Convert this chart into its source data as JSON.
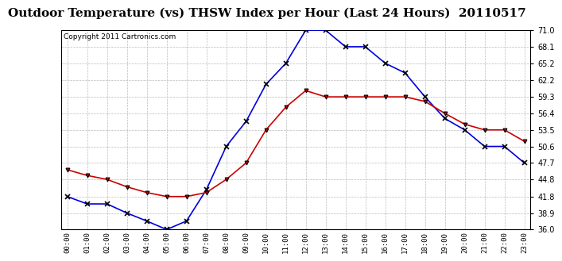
{
  "title": "Outdoor Temperature (vs) THSW Index per Hour (Last 24 Hours)  20110517",
  "copyright": "Copyright 2011 Cartronics.com",
  "hours": [
    0,
    1,
    2,
    3,
    4,
    5,
    6,
    7,
    8,
    9,
    10,
    11,
    12,
    13,
    14,
    15,
    16,
    17,
    18,
    19,
    20,
    21,
    22,
    23
  ],
  "thsw_blue": [
    41.8,
    40.5,
    40.5,
    38.9,
    37.5,
    36.0,
    37.5,
    43.0,
    50.6,
    55.0,
    61.5,
    65.2,
    71.0,
    71.0,
    68.1,
    68.1,
    65.2,
    63.5,
    59.3,
    55.5,
    53.5,
    50.6,
    50.6,
    47.7
  ],
  "temp_red": [
    46.5,
    45.5,
    44.8,
    43.5,
    42.5,
    41.8,
    41.8,
    42.5,
    44.8,
    47.7,
    53.5,
    57.5,
    60.4,
    59.3,
    59.3,
    59.3,
    59.3,
    59.3,
    58.5,
    56.4,
    54.5,
    53.5,
    53.5,
    51.5
  ],
  "ylim": [
    36.0,
    71.0
  ],
  "yticks": [
    36.0,
    38.9,
    41.8,
    44.8,
    47.7,
    50.6,
    53.5,
    56.4,
    59.3,
    62.2,
    65.2,
    68.1,
    71.0
  ],
  "background_color": "#ffffff",
  "plot_bg_color": "#ffffff",
  "grid_color": "#bbbbbb",
  "blue_color": "#0000dd",
  "red_color": "#cc0000",
  "title_fontsize": 11,
  "copyright_fontsize": 6.5
}
